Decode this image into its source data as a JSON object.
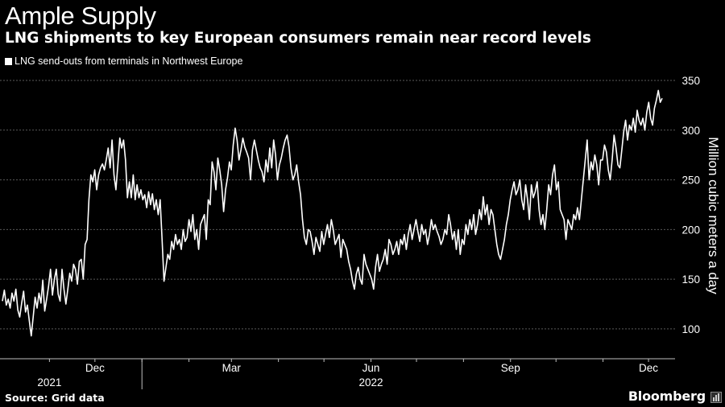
{
  "header": {
    "title": "Ample Supply",
    "subtitle": "LNG shipments to key European consumers remain near record levels"
  },
  "footer": {
    "source": "Source: Grid data",
    "brand": "Bloomberg"
  },
  "colors": {
    "background": "#000000",
    "line": "#ffffff",
    "grid": "#5a5a5a",
    "axis": "#bfbfbf"
  },
  "chart_data": {
    "type": "line",
    "title": "Ample Supply",
    "subtitle": "LNG shipments to key European consumers remain near record levels",
    "ylabel": "Million cubic meters a day",
    "ylim": [
      70,
      350
    ],
    "y_ticks": [
      100,
      150,
      200,
      250,
      300,
      350
    ],
    "grid": true,
    "legend_position": "top-left",
    "x_ticks": [
      {
        "label": "Dec",
        "date": "2021-12-01"
      },
      {
        "label": "Mar",
        "date": "2022-03-01"
      },
      {
        "label": "Jun",
        "date": "2022-06-01"
      },
      {
        "label": "Sep",
        "date": "2022-09-01"
      },
      {
        "label": "Dec",
        "date": "2022-12-01"
      }
    ],
    "x_year_labels": [
      {
        "label": "2021",
        "date": "2021-11-01"
      },
      {
        "label": "2022",
        "date": "2022-06-01"
      }
    ],
    "x_dividers": [
      "2022-01-01"
    ],
    "series": [
      {
        "name": "LNG send-outs from terminals in Northwest Europe",
        "x_start": "2021-10-01",
        "x_end": "2022-12-10",
        "values": [
          128,
          139,
          124,
          130,
          121,
          136,
          128,
          140,
          119,
          112,
          126,
          138,
          117,
          124,
          108,
          93,
          112,
          132,
          121,
          136,
          126,
          149,
          118,
          130,
          143,
          160,
          134,
          150,
          160,
          135,
          128,
          160,
          140,
          125,
          140,
          156,
          148,
          165,
          160,
          145,
          168,
          170,
          150,
          185,
          190,
          230,
          255,
          248,
          260,
          240,
          255,
          262,
          266,
          260,
          270,
          282,
          262,
          290,
          255,
          240,
          265,
          292,
          282,
          290,
          270,
          232,
          248,
          232,
          255,
          230,
          245,
          232,
          240,
          230,
          235,
          222,
          238,
          225,
          236,
          220,
          230,
          215,
          230,
          190,
          148,
          162,
          175,
          170,
          188,
          180,
          195,
          185,
          190,
          180,
          200,
          188,
          192,
          210,
          198,
          215,
          190,
          200,
          180,
          205,
          210,
          215,
          190,
          230,
          225,
          268,
          258,
          240,
          272,
          260,
          245,
          218,
          240,
          252,
          268,
          260,
          285,
          302,
          290,
          270,
          280,
          292,
          283,
          278,
          272,
          250,
          280,
          290,
          280,
          270,
          262,
          258,
          248,
          270,
          258,
          282,
          262,
          290,
          275,
          250,
          265,
          272,
          282,
          290,
          295,
          283,
          262,
          250,
          255,
          265,
          248,
          235,
          210,
          192,
          185,
          200,
          198,
          188,
          175,
          192,
          185,
          178,
          198,
          185,
          195,
          205,
          192,
          210,
          200,
          185,
          190,
          195,
          172,
          190,
          185,
          180,
          168,
          160,
          148,
          140,
          155,
          162,
          150,
          145,
          175,
          165,
          160,
          155,
          150,
          140,
          162,
          175,
          158,
          165,
          170,
          180,
          165,
          190,
          185,
          175,
          180,
          188,
          175,
          190,
          185,
          195,
          180,
          195,
          205,
          190,
          200,
          210,
          198,
          188,
          205,
          195,
          200,
          185,
          195,
          210,
          200,
          205,
          198,
          193,
          185,
          190,
          200,
          195,
          215,
          205,
          190,
          198,
          180,
          200,
          175,
          190,
          185,
          205,
          195,
          210,
          200,
          215,
          195,
          205,
          220,
          210,
          233,
          215,
          225,
          205,
          220,
          215,
          200,
          185,
          175,
          170,
          180,
          190,
          205,
          215,
          230,
          240,
          248,
          235,
          240,
          250,
          230,
          220,
          245,
          230,
          210,
          245,
          232,
          238,
          248,
          220,
          205,
          215,
          200,
          220,
          245,
          235,
          255,
          265,
          240,
          248,
          220,
          215,
          210,
          190,
          210,
          205,
          200,
          215,
          210,
          222,
          210,
          230,
          250,
          270,
          290,
          250,
          268,
          260,
          275,
          265,
          245,
          270,
          270,
          285,
          278,
          260,
          250,
          270,
          295,
          282,
          265,
          262,
          280,
          298,
          310,
          290,
          305,
          300,
          312,
          298,
          320,
          310,
          305,
          312,
          300,
          318,
          328,
          312,
          305,
          322,
          330,
          340,
          328,
          332
        ]
      }
    ]
  }
}
